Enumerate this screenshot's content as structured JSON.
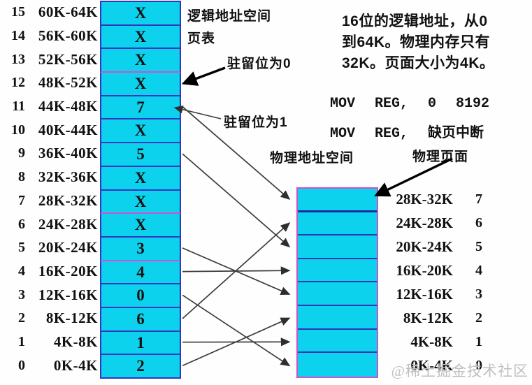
{
  "colors": {
    "cell_fill": "#0cd2ee",
    "border_blue": "#3138bf",
    "border_magenta": "#cb54cb",
    "arrow": "#3c3c3c",
    "watermark_gray": "#bfbfbf"
  },
  "page_table": {
    "space_label": "逻辑地址空间",
    "table_label": "页表",
    "rows": [
      {
        "page": "15",
        "range": "60K-64K",
        "entry": "X"
      },
      {
        "page": "14",
        "range": "56K-60K",
        "entry": "X"
      },
      {
        "page": "13",
        "range": "52K-56K",
        "entry": "X"
      },
      {
        "page": "12",
        "range": "48K-52K",
        "entry": "X"
      },
      {
        "page": "11",
        "range": "44K-48K",
        "entry": "7"
      },
      {
        "page": "10",
        "range": "40K-44K",
        "entry": "X"
      },
      {
        "page": "9",
        "range": "36K-40K",
        "entry": "5"
      },
      {
        "page": "8",
        "range": "32K-36K",
        "entry": "X"
      },
      {
        "page": "7",
        "range": "28K-32K",
        "entry": "X"
      },
      {
        "page": "6",
        "range": "24K-28K",
        "entry": "X"
      },
      {
        "page": "5",
        "range": "20K-24K",
        "entry": "3"
      },
      {
        "page": "4",
        "range": "16K-20K",
        "entry": "4"
      },
      {
        "page": "3",
        "range": "12K-16K",
        "entry": "0"
      },
      {
        "page": "2",
        "range": "8K-12K",
        "entry": "6"
      },
      {
        "page": "1",
        "range": "4K-8K",
        "entry": "1"
      },
      {
        "page": "0",
        "range": "0K-4K",
        "entry": "2"
      }
    ]
  },
  "physical": {
    "space_label": "物理地址空间",
    "page_label": "物理页面",
    "rows": [
      {
        "frame": "7",
        "range": "28K-32K"
      },
      {
        "frame": "6",
        "range": "24K-28K"
      },
      {
        "frame": "5",
        "range": "20K-24K"
      },
      {
        "frame": "4",
        "range": "16K-20K"
      },
      {
        "frame": "3",
        "range": "12K-16K"
      },
      {
        "frame": "2",
        "range": "8K-12K"
      },
      {
        "frame": "1",
        "range": "4K-8K"
      },
      {
        "frame": "0",
        "range": "0K-4K"
      }
    ]
  },
  "annotations": {
    "resident_bit_0": "驻留位为0",
    "resident_bit_1": "驻留位为1"
  },
  "description": {
    "lines": [
      "16位的逻辑地址，从0",
      "到64K。物理内存只有",
      "32K。页面大小为4K。"
    ]
  },
  "instructions": {
    "line1": "MOV REG, 0 8192",
    "line2": "MOV REG, 缺页中断"
  },
  "mappings": [
    {
      "page": 11,
      "frame": 7
    },
    {
      "page": 9,
      "frame": 5
    },
    {
      "page": 5,
      "frame": 3
    },
    {
      "page": 4,
      "frame": 4
    },
    {
      "page": 3,
      "frame": 0
    },
    {
      "page": 2,
      "frame": 6
    },
    {
      "page": 1,
      "frame": 1
    },
    {
      "page": 0,
      "frame": 2
    }
  ],
  "watermark": "@稀土掘金技术社区"
}
